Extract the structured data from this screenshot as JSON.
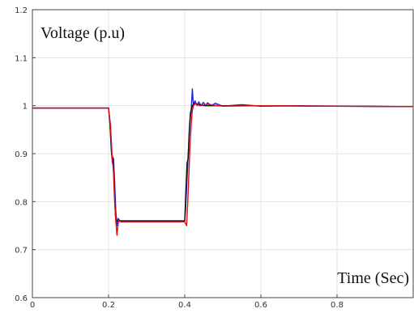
{
  "chart_data": {
    "type": "line",
    "title": "",
    "ylabel": "Voltage (p.u)",
    "xlabel": "Time (Sec)",
    "xlim": [
      0,
      1.0
    ],
    "ylim": [
      0.6,
      1.2
    ],
    "x_ticks": [
      0,
      0.2,
      0.4,
      0.6,
      0.8
    ],
    "y_ticks": [
      0.6,
      0.7,
      0.8,
      0.9,
      1,
      1.1,
      1.2
    ],
    "x_tick_labels": [
      "0",
      "0.2",
      "0.4",
      "0.6",
      "0.8"
    ],
    "y_tick_labels": [
      "0.6",
      "0.7",
      "0.8",
      "0.9",
      "1",
      "1.1",
      "1.2"
    ],
    "grid": true,
    "legend": "none",
    "series": [
      {
        "color": "#2222dd",
        "points": [
          [
            0,
            0.995
          ],
          [
            0.2,
            0.995
          ],
          [
            0.203,
            0.97
          ],
          [
            0.207,
            0.91
          ],
          [
            0.21,
            0.88
          ],
          [
            0.213,
            0.89
          ],
          [
            0.216,
            0.84
          ],
          [
            0.219,
            0.78
          ],
          [
            0.222,
            0.75
          ],
          [
            0.225,
            0.765
          ],
          [
            0.23,
            0.76
          ],
          [
            0.4,
            0.76
          ],
          [
            0.402,
            0.78
          ],
          [
            0.405,
            0.83
          ],
          [
            0.408,
            0.88
          ],
          [
            0.411,
            0.93
          ],
          [
            0.414,
            0.97
          ],
          [
            0.417,
            0.99
          ],
          [
            0.42,
            1.035
          ],
          [
            0.423,
            1.0
          ],
          [
            0.427,
            1.01
          ],
          [
            0.432,
            1.0
          ],
          [
            0.437,
            1.008
          ],
          [
            0.443,
            1.0
          ],
          [
            0.449,
            1.007
          ],
          [
            0.455,
            1.0
          ],
          [
            0.46,
            1.006
          ],
          [
            0.47,
            1.0
          ],
          [
            0.48,
            1.005
          ],
          [
            0.5,
            0.999
          ],
          [
            0.55,
            1.002
          ],
          [
            0.6,
            0.999
          ],
          [
            0.7,
            1.0
          ],
          [
            1.0,
            0.998
          ]
        ]
      },
      {
        "color": "#111111",
        "points": [
          [
            0,
            0.995
          ],
          [
            0.2,
            0.995
          ],
          [
            0.204,
            0.96
          ],
          [
            0.208,
            0.9
          ],
          [
            0.212,
            0.89
          ],
          [
            0.215,
            0.83
          ],
          [
            0.218,
            0.77
          ],
          [
            0.222,
            0.76
          ],
          [
            0.23,
            0.76
          ],
          [
            0.4,
            0.76
          ],
          [
            0.403,
            0.82
          ],
          [
            0.406,
            0.88
          ],
          [
            0.409,
            0.89
          ],
          [
            0.412,
            0.95
          ],
          [
            0.415,
            0.985
          ],
          [
            0.42,
            1.0
          ],
          [
            0.425,
            1.005
          ],
          [
            0.45,
            1.0
          ],
          [
            0.5,
            1.0
          ],
          [
            1.0,
            0.998
          ]
        ]
      },
      {
        "color": "#dd1111",
        "points": [
          [
            0,
            0.995
          ],
          [
            0.2,
            0.995
          ],
          [
            0.205,
            0.96
          ],
          [
            0.209,
            0.9
          ],
          [
            0.213,
            0.86
          ],
          [
            0.216,
            0.8
          ],
          [
            0.219,
            0.76
          ],
          [
            0.222,
            0.73
          ],
          [
            0.226,
            0.76
          ],
          [
            0.232,
            0.758
          ],
          [
            0.4,
            0.758
          ],
          [
            0.405,
            0.75
          ],
          [
            0.408,
            0.8
          ],
          [
            0.411,
            0.86
          ],
          [
            0.414,
            0.92
          ],
          [
            0.417,
            0.96
          ],
          [
            0.42,
            0.99
          ],
          [
            0.423,
            1.0
          ],
          [
            0.428,
            1.004
          ],
          [
            0.44,
            1.0
          ],
          [
            0.46,
            1.003
          ],
          [
            0.5,
            0.999
          ],
          [
            0.6,
            1.0
          ],
          [
            1.0,
            0.998
          ]
        ]
      }
    ]
  }
}
